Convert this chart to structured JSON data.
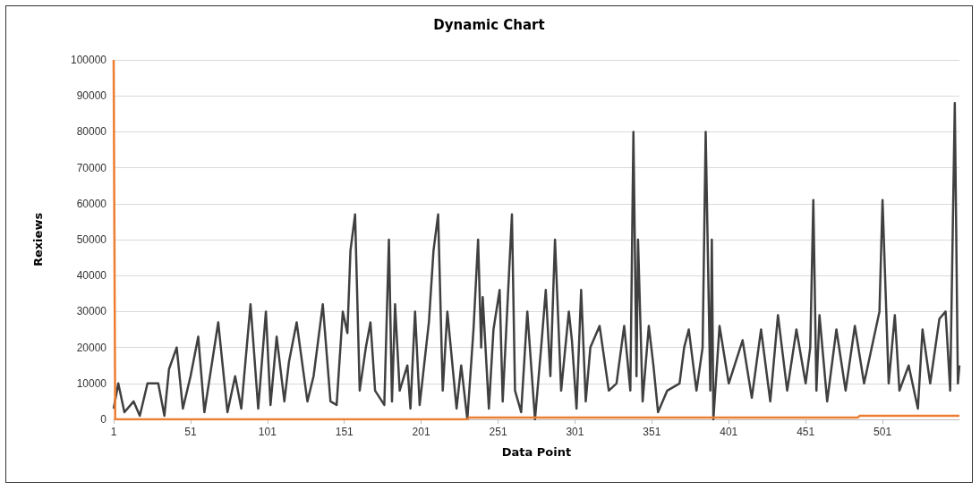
{
  "chart_data": {
    "type": "line",
    "title": "Dynamic Chart",
    "xlabel": "Data Point",
    "ylabel": "Rexiews",
    "xlim": [
      1,
      551
    ],
    "xticks": [
      1,
      51,
      101,
      151,
      201,
      251,
      301,
      351,
      401,
      451,
      501
    ],
    "ylim": [
      0,
      100000
    ],
    "yticks": [
      0,
      10000,
      20000,
      30000,
      40000,
      50000,
      60000,
      70000,
      80000,
      90000,
      100000
    ],
    "grid": "y",
    "marker": "none",
    "line_style": "solid",
    "series": [
      {
        "color": "#404040",
        "x": [
          1,
          4,
          8,
          14,
          18,
          23,
          30,
          34,
          37,
          42,
          46,
          51,
          56,
          60,
          69,
          75,
          80,
          84,
          90,
          95,
          100,
          103,
          107,
          112,
          115,
          120,
          127,
          131,
          137,
          142,
          146,
          150,
          153,
          155,
          158,
          161,
          165,
          168,
          171,
          177,
          180,
          182,
          184,
          187,
          192,
          194,
          197,
          200,
          206,
          209,
          212,
          215,
          218,
          224,
          227,
          231,
          235,
          238,
          240,
          241,
          245,
          248,
          252,
          254,
          260,
          262,
          266,
          270,
          275,
          279,
          282,
          285,
          288,
          292,
          297,
          299,
          302,
          305,
          308,
          311,
          317,
          323,
          328,
          333,
          337,
          339,
          341,
          342,
          345,
          349,
          352,
          355,
          361,
          369,
          372,
          375,
          380,
          384,
          386,
          389,
          390,
          391,
          395,
          401,
          410,
          416,
          422,
          428,
          433,
          439,
          445,
          451,
          454,
          456,
          458,
          460,
          465,
          471,
          477,
          483,
          489,
          495,
          499,
          501,
          505,
          509,
          512,
          518,
          524,
          527,
          532,
          538,
          542,
          545,
          548,
          550,
          551
        ],
        "values": [
          3000,
          10000,
          2000,
          5000,
          1000,
          10000,
          10000,
          1000,
          14000,
          20000,
          3000,
          12000,
          23000,
          2000,
          27000,
          2000,
          12000,
          3000,
          32000,
          3000,
          30000,
          4000,
          23000,
          5000,
          16000,
          27000,
          5000,
          12000,
          32000,
          5000,
          4000,
          30000,
          24000,
          47000,
          57000,
          8000,
          20000,
          27000,
          8000,
          4000,
          50000,
          5000,
          32000,
          8000,
          15000,
          3000,
          30000,
          4000,
          27000,
          47000,
          57000,
          8000,
          30000,
          3000,
          15000,
          0,
          25000,
          50000,
          20000,
          34000,
          3000,
          25000,
          36000,
          5000,
          57000,
          8000,
          2000,
          30000,
          0,
          20000,
          36000,
          12000,
          50000,
          8000,
          30000,
          22000,
          3000,
          36000,
          5000,
          20000,
          26000,
          8000,
          10000,
          26000,
          8000,
          80000,
          12000,
          50000,
          5000,
          26000,
          15000,
          2000,
          8000,
          10000,
          20000,
          25000,
          8000,
          20000,
          80000,
          8000,
          50000,
          0,
          26000,
          10000,
          22000,
          6000,
          25000,
          5000,
          29000,
          8000,
          25000,
          10000,
          20000,
          61000,
          8000,
          29000,
          5000,
          25000,
          8000,
          26000,
          10000,
          22000,
          30000,
          61000,
          10000,
          29000,
          8000,
          15000,
          3000,
          25000,
          10000,
          28000,
          30000,
          8000,
          88000,
          10000,
          15000
        ]
      },
      {
        "color": "#ed7d31",
        "x": [
          1,
          2,
          231,
          232,
          485,
          486,
          551
        ],
        "values": [
          100000,
          0,
          0,
          500,
          500,
          1000,
          1000
        ]
      }
    ]
  }
}
